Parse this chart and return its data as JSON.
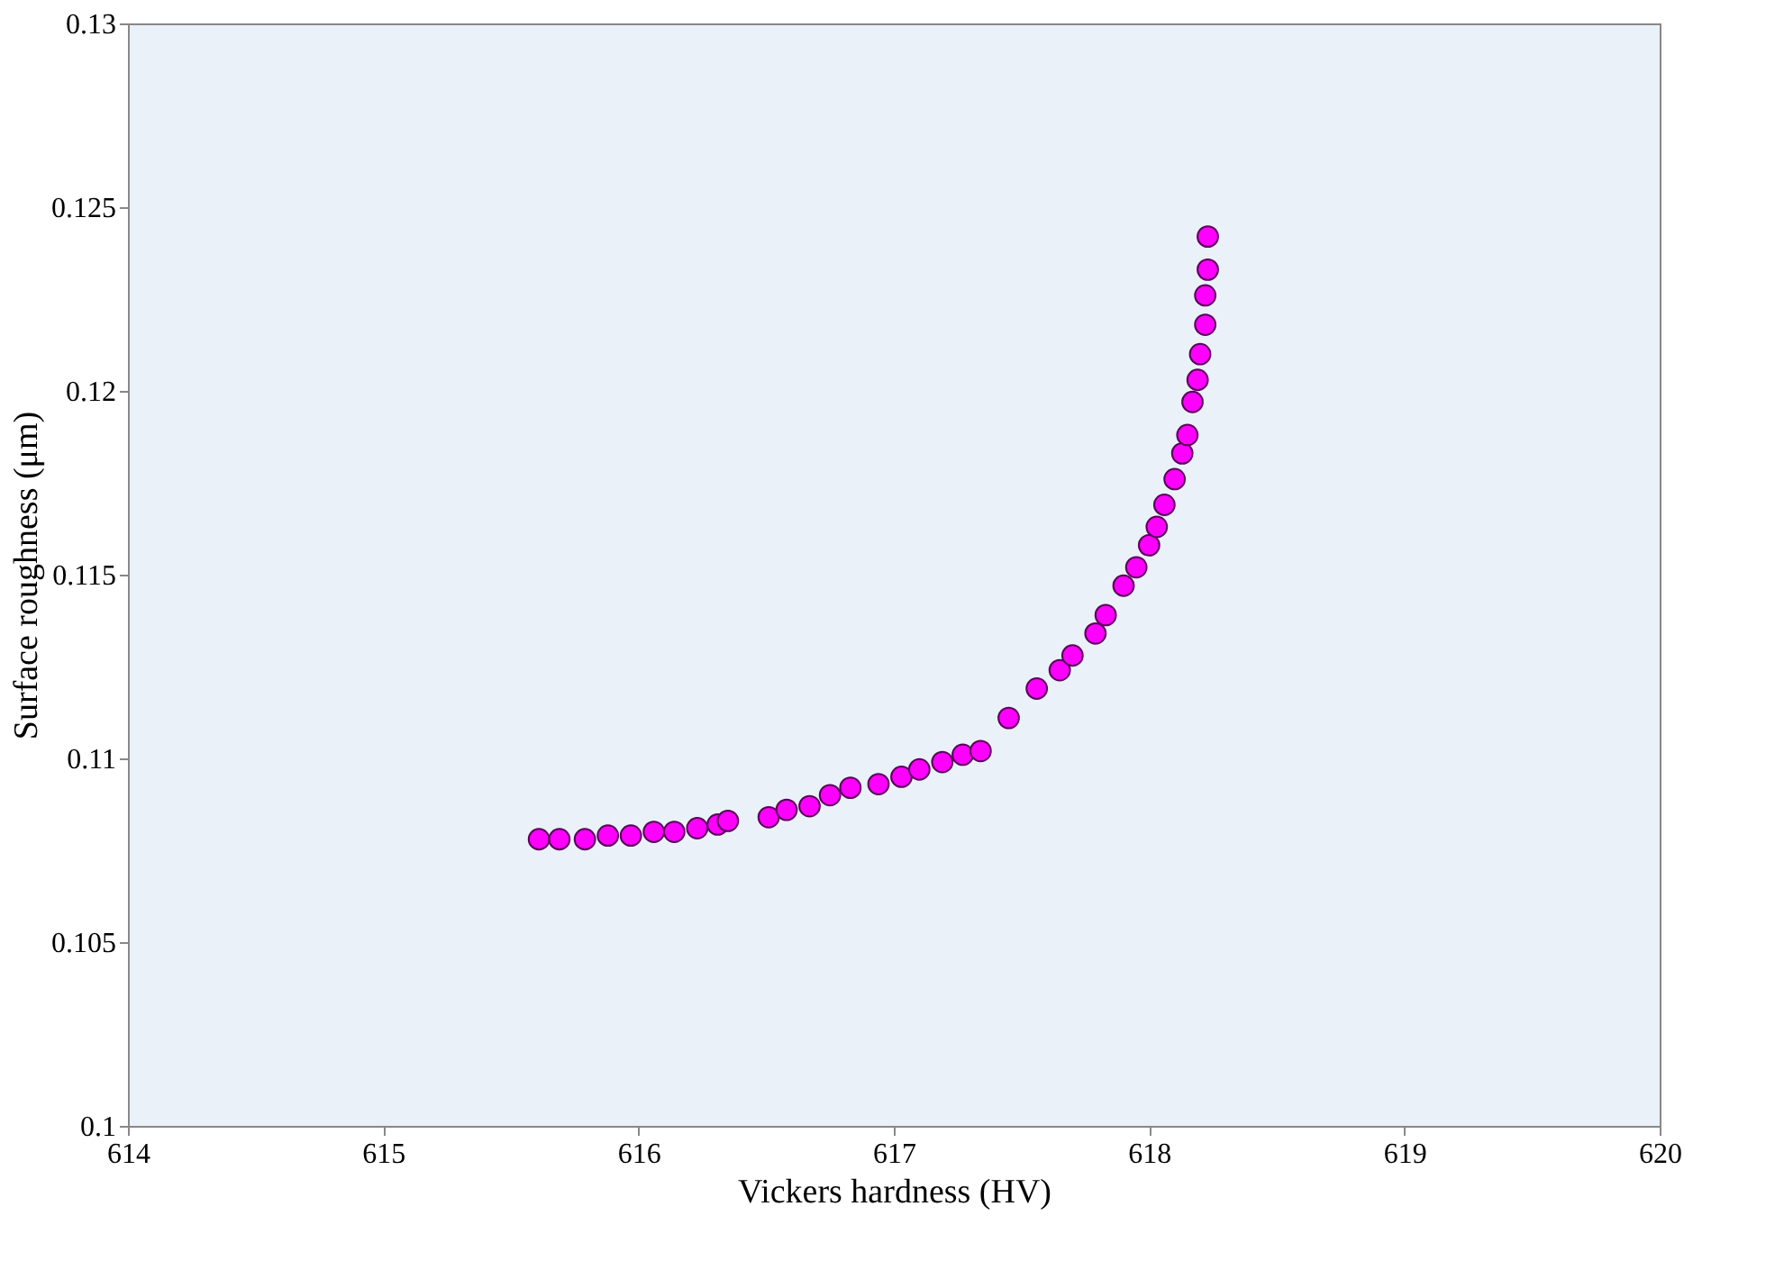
{
  "chart_data": {
    "type": "scatter",
    "xlabel": "Vickers hardness (HV)",
    "ylabel": "Surface roughness (μm)",
    "marker": "circle",
    "grid": false,
    "xlim": [
      614,
      620
    ],
    "xticks": [
      614,
      615,
      616,
      617,
      618,
      619,
      620
    ],
    "ylim": [
      0.1,
      0.13
    ],
    "yticks": [
      0.1,
      0.105,
      0.11,
      0.115,
      0.12,
      0.125,
      0.13
    ],
    "series": [
      {
        "color": "#ff00ff",
        "x": [
          615.61,
          615.69,
          615.79,
          615.88,
          615.97,
          616.06,
          616.14,
          616.23,
          616.31,
          616.35,
          616.51,
          616.58,
          616.67,
          616.75,
          616.83,
          616.94,
          617.03,
          617.1,
          617.19,
          617.27,
          617.34,
          617.45,
          617.56,
          617.65,
          617.7,
          617.79,
          617.83,
          617.9,
          617.95,
          618.0,
          618.03,
          618.06,
          618.1,
          618.13,
          618.15,
          618.17,
          618.19,
          618.2,
          618.22,
          618.22,
          618.23,
          618.23
        ],
        "values": [
          0.1078,
          0.1078,
          0.1078,
          0.1079,
          0.1079,
          0.108,
          0.108,
          0.1081,
          0.1082,
          0.1083,
          0.1084,
          0.1086,
          0.1087,
          0.109,
          0.1092,
          0.1093,
          0.1095,
          0.1097,
          0.1099,
          0.1101,
          0.1102,
          0.1111,
          0.1119,
          0.1124,
          0.1128,
          0.1134,
          0.1139,
          0.1147,
          0.1152,
          0.1158,
          0.1163,
          0.1169,
          0.1176,
          0.1183,
          0.1188,
          0.1197,
          0.1203,
          0.121,
          0.1218,
          0.1226,
          0.1233,
          0.1242
        ]
      }
    ]
  }
}
